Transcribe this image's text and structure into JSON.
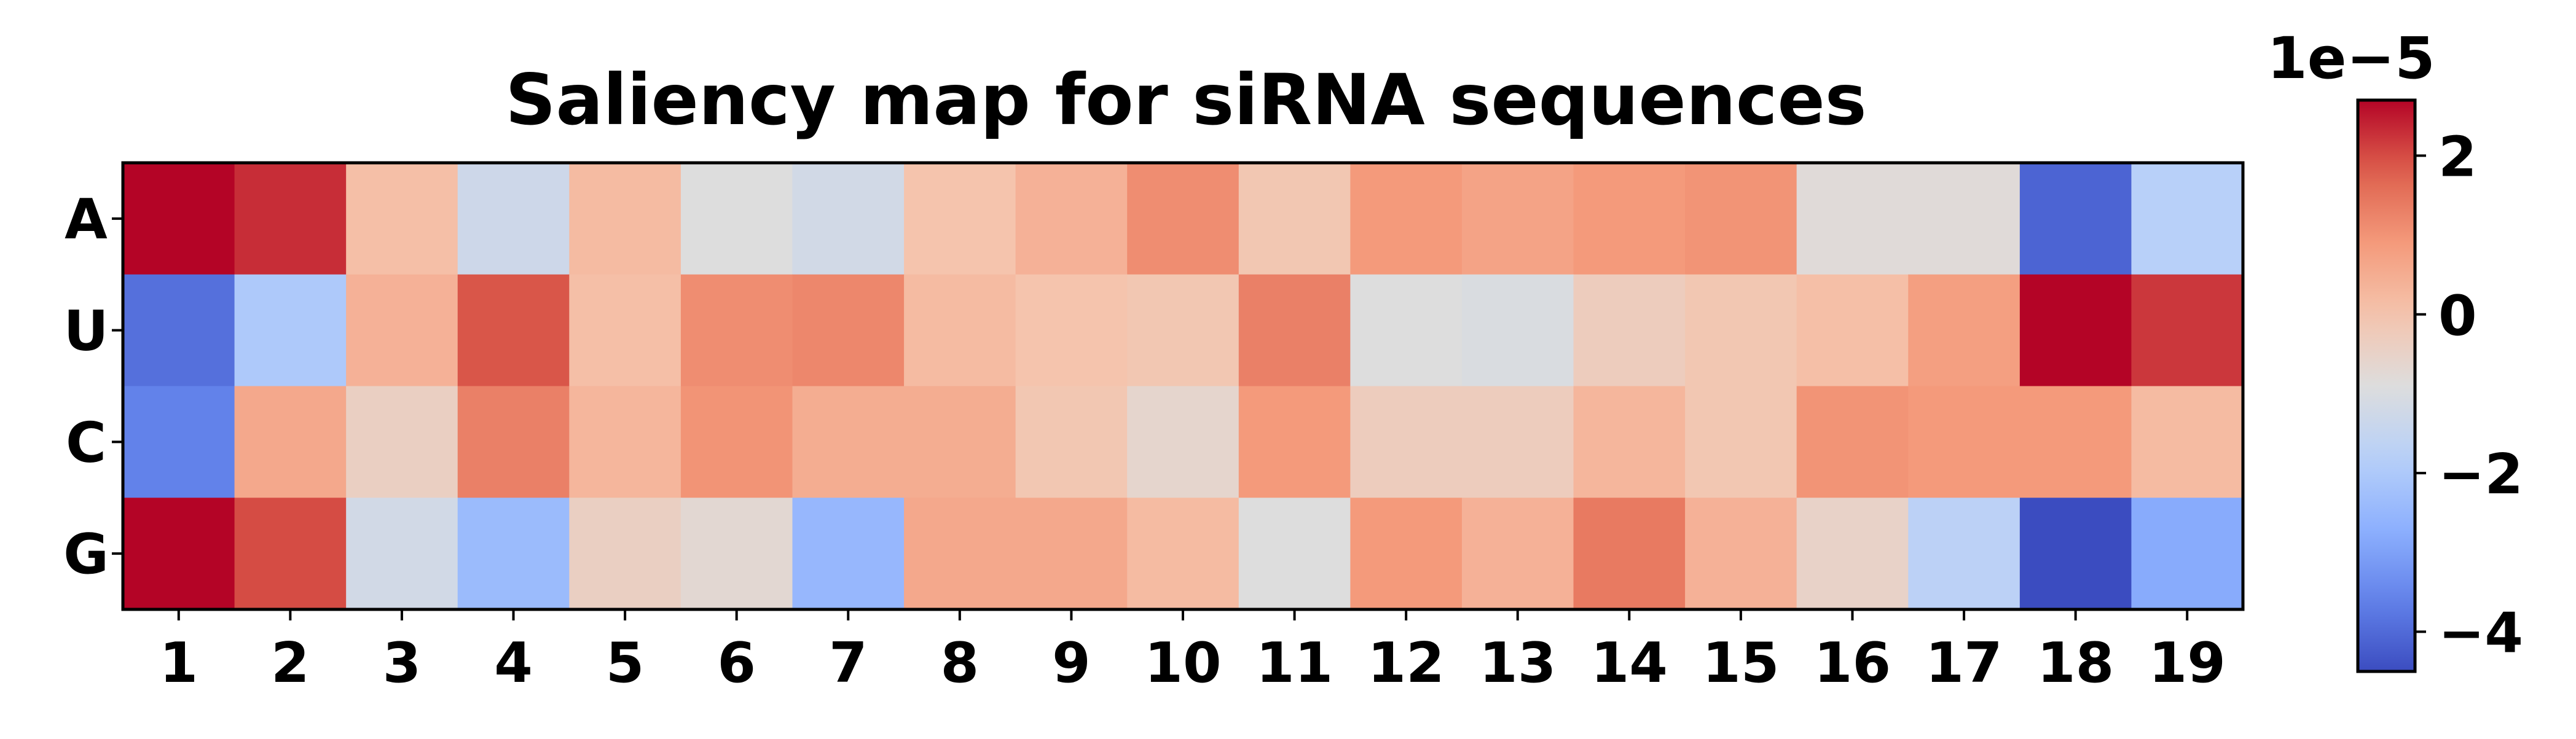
{
  "chart_data": {
    "type": "heatmap",
    "title": "Saliency map for siRNA sequences",
    "xlabel": "",
    "ylabel": "",
    "rows": [
      "A",
      "U",
      "C",
      "G"
    ],
    "columns": [
      "1",
      "2",
      "3",
      "4",
      "5",
      "6",
      "7",
      "8",
      "9",
      "10",
      "11",
      "12",
      "13",
      "14",
      "15",
      "16",
      "17",
      "18",
      "19"
    ],
    "values": [
      [
        2.7,
        2.3,
        0.1,
        -1.3,
        0.2,
        -0.9,
        -1.2,
        0.0,
        0.4,
        1.1,
        -0.1,
        0.9,
        0.7,
        0.9,
        1.0,
        -0.8,
        -0.8,
        -4.1,
        -1.8
      ],
      [
        -3.9,
        -2.0,
        0.4,
        1.9,
        0.1,
        1.1,
        1.2,
        0.2,
        0.0,
        -0.1,
        1.3,
        -0.9,
        -1.0,
        -0.3,
        -0.1,
        0.1,
        0.8,
        2.7,
        2.2
      ],
      [
        -3.6,
        0.6,
        -0.4,
        1.3,
        0.3,
        1.0,
        0.5,
        0.5,
        -0.1,
        -0.6,
        0.9,
        -0.3,
        -0.3,
        0.3,
        -0.1,
        1.0,
        0.9,
        0.9,
        0.2
      ],
      [
        2.7,
        2.0,
        -1.2,
        -2.4,
        -0.4,
        -0.7,
        -2.5,
        0.6,
        0.6,
        0.2,
        -0.9,
        0.9,
        0.4,
        1.4,
        0.4,
        -0.5,
        -1.7,
        -4.5,
        -2.8
      ]
    ],
    "colormap": "coolwarm",
    "vmin": -4.5,
    "vmax": 2.7,
    "colorbar": {
      "ticks": [
        2,
        0,
        -2,
        -4
      ],
      "tick_labels": [
        "2",
        "0",
        "−2",
        "−4"
      ],
      "offset_label": "1e−5"
    }
  }
}
